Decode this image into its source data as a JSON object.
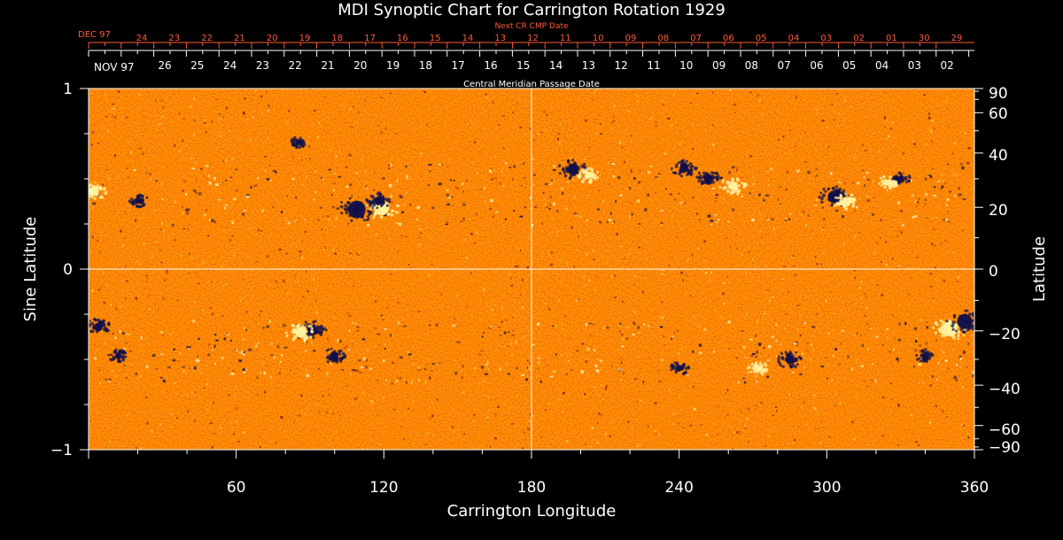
{
  "chart_data": {
    "type": "heatmap",
    "title": "MDI Synoptic Chart for Carrington Rotation 1929",
    "xlabel": "Carrington Longitude",
    "ylabel_left": "Sine Latitude",
    "ylabel_right": "Latitude",
    "xlim": [
      0,
      360
    ],
    "ylim": [
      -1,
      1
    ],
    "x_ticks": [
      60,
      120,
      180,
      240,
      300,
      360
    ],
    "y_ticks_left": [
      -1,
      0,
      1
    ],
    "y_ticks_right": [
      90,
      60,
      40,
      20,
      0,
      -20,
      -40,
      -60,
      -90
    ],
    "y_tick_labels_left": [
      "−1",
      "0",
      "1"
    ],
    "y_tick_labels_right": [
      "90",
      "60",
      "40",
      "20",
      "0",
      "−20",
      "−40",
      "−60",
      "−90"
    ],
    "grid_lines": {
      "x": [
        180
      ],
      "sin_lat": [
        0
      ]
    },
    "colors": {
      "background": "#ff4a12",
      "positive": "#fff2a0",
      "negative": "#12104a",
      "text": "#ffffff",
      "next_date_text": "#ff5a3c"
    },
    "next_cr_axis": {
      "label": "Next CR CMP Date",
      "month_label": "DEC 97",
      "dates": [
        "24",
        "23",
        "22",
        "21",
        "20",
        "19",
        "18",
        "17",
        "16",
        "15",
        "14",
        "13",
        "12",
        "11",
        "10",
        "09",
        "08",
        "07",
        "06",
        "05",
        "04",
        "03",
        "02",
        "01",
        "30",
        "29"
      ]
    },
    "cmp_axis": {
      "label": "Central Meridian Passage Date",
      "month_label": "NOV 97",
      "dates": [
        "26",
        "25",
        "24",
        "23",
        "22",
        "21",
        "20",
        "19",
        "18",
        "17",
        "16",
        "15",
        "14",
        "13",
        "12",
        "11",
        "10",
        "09",
        "08",
        "07",
        "06",
        "05",
        "04",
        "03",
        "02"
      ]
    },
    "active_regions": [
      {
        "lon": 109,
        "sinlat": 0.33,
        "polarity": "negative",
        "strength": 1.0
      },
      {
        "lon": 119,
        "sinlat": 0.34,
        "polarity": "positive",
        "strength": 0.9
      },
      {
        "lon": 118,
        "sinlat": 0.38,
        "polarity": "negative",
        "strength": 0.5
      },
      {
        "lon": 197,
        "sinlat": 0.55,
        "polarity": "negative",
        "strength": 0.7
      },
      {
        "lon": 203,
        "sinlat": 0.52,
        "polarity": "positive",
        "strength": 0.5
      },
      {
        "lon": 242,
        "sinlat": 0.56,
        "polarity": "negative",
        "strength": 0.6
      },
      {
        "lon": 252,
        "sinlat": 0.5,
        "polarity": "negative",
        "strength": 0.6
      },
      {
        "lon": 262,
        "sinlat": 0.46,
        "polarity": "positive",
        "strength": 0.6
      },
      {
        "lon": 303,
        "sinlat": 0.4,
        "polarity": "negative",
        "strength": 0.8
      },
      {
        "lon": 308,
        "sinlat": 0.37,
        "polarity": "positive",
        "strength": 0.6
      },
      {
        "lon": 330,
        "sinlat": 0.5,
        "polarity": "negative",
        "strength": 0.4
      },
      {
        "lon": 325,
        "sinlat": 0.48,
        "polarity": "positive",
        "strength": 0.4
      },
      {
        "lon": 2,
        "sinlat": 0.43,
        "polarity": "positive",
        "strength": 0.6
      },
      {
        "lon": 20,
        "sinlat": 0.38,
        "polarity": "negative",
        "strength": 0.4
      },
      {
        "lon": 85,
        "sinlat": 0.7,
        "polarity": "negative",
        "strength": 0.3
      },
      {
        "lon": 91,
        "sinlat": -0.34,
        "polarity": "negative",
        "strength": 0.7
      },
      {
        "lon": 86,
        "sinlat": -0.35,
        "polarity": "positive",
        "strength": 0.7
      },
      {
        "lon": 100,
        "sinlat": -0.48,
        "polarity": "negative",
        "strength": 0.5
      },
      {
        "lon": 4,
        "sinlat": -0.32,
        "polarity": "negative",
        "strength": 0.6
      },
      {
        "lon": 12,
        "sinlat": -0.48,
        "polarity": "negative",
        "strength": 0.4
      },
      {
        "lon": 240,
        "sinlat": -0.55,
        "polarity": "negative",
        "strength": 0.4
      },
      {
        "lon": 285,
        "sinlat": -0.5,
        "polarity": "negative",
        "strength": 0.6
      },
      {
        "lon": 272,
        "sinlat": -0.55,
        "polarity": "positive",
        "strength": 0.4
      },
      {
        "lon": 350,
        "sinlat": -0.33,
        "polarity": "positive",
        "strength": 0.9
      },
      {
        "lon": 356,
        "sinlat": -0.29,
        "polarity": "negative",
        "strength": 0.9
      },
      {
        "lon": 340,
        "sinlat": -0.48,
        "polarity": "negative",
        "strength": 0.4
      }
    ]
  }
}
